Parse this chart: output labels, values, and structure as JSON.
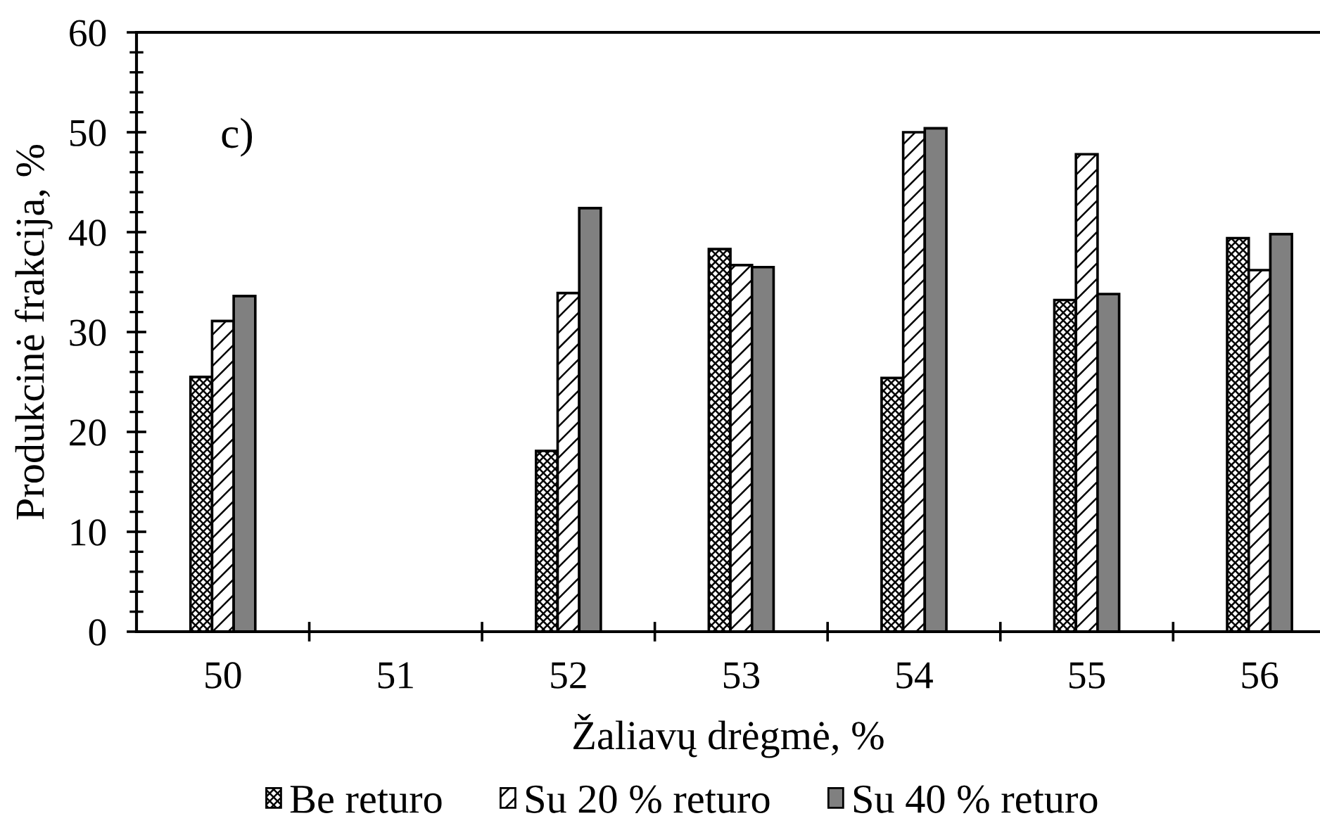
{
  "chart_data": {
    "type": "bar",
    "xlabel": "Žaliavų drėgmė, %",
    "ylabel": "Produkcinė frakcija, %",
    "annotations": [
      "c)"
    ],
    "categories": [
      "50",
      "51",
      "52",
      "53",
      "54",
      "55",
      "56"
    ],
    "series": [
      {
        "name": "Be returo",
        "color": "#000000",
        "values": [
          25.5,
          null,
          18.1,
          38.3,
          25.4,
          33.2,
          39.4
        ]
      },
      {
        "name": "Su 20 % returo",
        "color": "#000000",
        "values": [
          31.1,
          null,
          33.9,
          36.7,
          50.0,
          47.8,
          36.2
        ]
      },
      {
        "name": "Su 40 % returo",
        "color": "#808080",
        "values": [
          33.6,
          null,
          42.4,
          36.5,
          50.4,
          33.8,
          39.8
        ]
      }
    ],
    "ylim": [
      0,
      60
    ],
    "yticks": [
      0,
      {
        "value": 2,
        "label": null
      },
      {
        "value": 4,
        "label": null
      },
      {
        "value": 6,
        "label": null
      },
      {
        "value": 8,
        "label": null
      },
      10,
      {
        "value": 12,
        "label": null
      },
      {
        "value": 14,
        "label": null
      },
      {
        "value": 16,
        "label": null
      },
      {
        "value": 18,
        "label": null
      },
      20,
      {
        "value": 22,
        "label": null
      },
      {
        "value": 24,
        "label": null
      },
      {
        "value": 26,
        "label": null
      },
      {
        "value": 28,
        "label": null
      },
      30,
      {
        "value": 32,
        "label": null
      },
      {
        "value": 34,
        "label": null
      },
      {
        "value": 36,
        "label": null
      },
      {
        "value": 38,
        "label": null
      },
      40,
      {
        "value": 42,
        "label": null
      },
      {
        "value": 44,
        "label": null
      },
      {
        "value": 46,
        "label": null
      },
      {
        "value": 48,
        "label": null
      },
      50,
      {
        "value": 52,
        "label": null
      },
      {
        "value": 54,
        "label": null
      },
      {
        "value": 56,
        "label": null
      },
      {
        "value": 58,
        "label": null
      },
      60
    ],
    "grid": false,
    "legend": "bottom"
  }
}
